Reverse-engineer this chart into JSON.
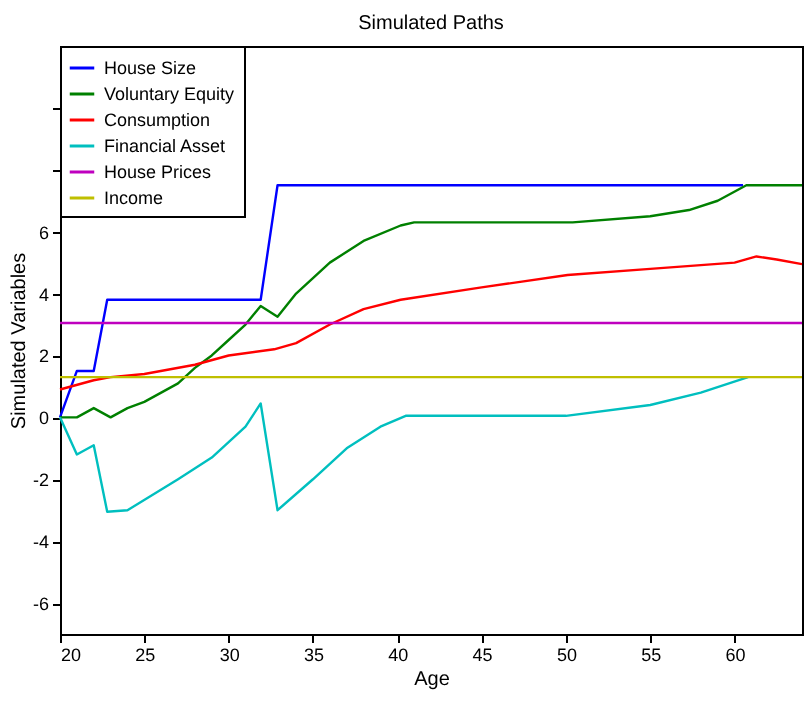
{
  "chart_data": {
    "type": "line",
    "title": "Simulated Paths",
    "xlabel": "Age",
    "ylabel": "Simulated Variables",
    "xlim": [
      20,
      64
    ],
    "xticks": [
      20,
      25,
      30,
      35,
      40,
      45,
      50,
      55,
      60
    ],
    "ylim": [
      -7,
      12
    ],
    "yticks": [
      -6,
      -4,
      -2,
      0,
      2,
      4,
      6,
      {
        "value": 8,
        "label": null
      },
      {
        "value": 10,
        "label": null
      }
    ],
    "grid": false,
    "legend": "top left",
    "series": [
      {
        "name": "House Size",
        "color": "#0000ff",
        "x": [
          20,
          21,
          22,
          22.8,
          31.9,
          32.9,
          60.5
        ],
        "values": [
          0,
          1.5,
          1.5,
          3.8,
          3.8,
          7.5,
          7.5
        ]
      },
      {
        "name": "Voluntary Equity",
        "color": "#008000",
        "x": [
          20,
          21,
          22,
          23,
          24,
          25,
          26,
          27,
          28,
          29,
          30,
          31,
          31.9,
          32.9,
          34,
          36,
          38,
          40.2,
          41,
          50.4,
          55,
          57.3,
          59,
          60.7,
          64
        ],
        "values": [
          0,
          0,
          0.3,
          0,
          0.3,
          0.5,
          0.8,
          1.1,
          1.6,
          2.0,
          2.5,
          3.0,
          3.6,
          3.25,
          4.0,
          5.0,
          5.7,
          6.2,
          6.3,
          6.3,
          6.5,
          6.7,
          7.0,
          7.5,
          7.5
        ]
      },
      {
        "name": "Consumption",
        "color": "#ff0000",
        "x": [
          20,
          22,
          23,
          25,
          28,
          30,
          32.7,
          34,
          36,
          38,
          40.2,
          45,
          50.1,
          55,
          60,
          61.3,
          62.5,
          64
        ],
        "values": [
          0.9,
          1.2,
          1.3,
          1.4,
          1.7,
          2.0,
          2.2,
          2.4,
          3.0,
          3.5,
          3.8,
          4.2,
          4.6,
          4.8,
          5.0,
          5.2,
          5.1,
          4.95
        ]
      },
      {
        "name": "Financial Asset",
        "color": "#00bfbf",
        "x": [
          20,
          21,
          22,
          22.8,
          24,
          27,
          29,
          31,
          31.9,
          32.9,
          35,
          37,
          39,
          40.5,
          50,
          55,
          58,
          60.8
        ],
        "values": [
          0,
          -1.2,
          -0.9,
          -3.05,
          -3.0,
          -2.0,
          -1.3,
          -0.3,
          0.45,
          -3.0,
          -2.0,
          -1.0,
          -0.3,
          0.05,
          0.05,
          0.4,
          0.8,
          1.3
        ]
      },
      {
        "name": "House Prices",
        "color": "#bf00bf",
        "x": [
          20,
          64
        ],
        "values": [
          3.05,
          3.05
        ]
      },
      {
        "name": "Income",
        "color": "#bfbf00",
        "x": [
          20,
          64
        ],
        "values": [
          1.3,
          1.3
        ]
      }
    ]
  }
}
